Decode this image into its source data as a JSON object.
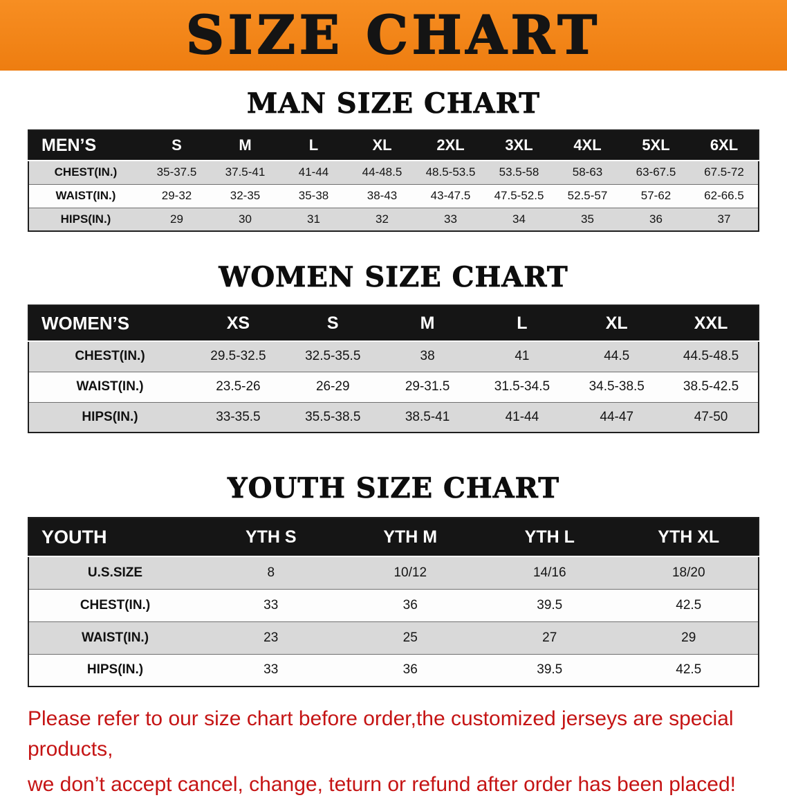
{
  "banner": {
    "title": "SIZE CHART",
    "bg_color": "#f08019"
  },
  "colors": {
    "banner_orange": "#f08019",
    "table_header_black": "#151515",
    "row_stripe_gray": "#d9d9d9",
    "notice_red": "#c51414"
  },
  "sections": [
    {
      "heading": "MAN SIZE CHART",
      "table": {
        "header": [
          "MEN’S",
          "S",
          "M",
          "L",
          "XL",
          "2XL",
          "3XL",
          "4XL",
          "5XL",
          "6XL"
        ],
        "rows": [
          {
            "label": "CHEST(IN.)",
            "values": [
              "35-37.5",
              "37.5-41",
              "41-44",
              "44-48.5",
              "48.5-53.5",
              "53.5-58",
              "58-63",
              "63-67.5",
              "67.5-72"
            ]
          },
          {
            "label": "WAIST(IN.)",
            "values": [
              "29-32",
              "32-35",
              "35-38",
              "38-43",
              "43-47.5",
              "47.5-52.5",
              "52.5-57",
              "57-62",
              "62-66.5"
            ]
          },
          {
            "label": "HIPS(IN.)",
            "values": [
              "29",
              "30",
              "31",
              "32",
              "33",
              "34",
              "35",
              "36",
              "37"
            ]
          }
        ]
      }
    },
    {
      "heading": "WOMEN SIZE CHART",
      "table": {
        "header": [
          "WOMEN’S",
          "XS",
          "S",
          "M",
          "L",
          "XL",
          "XXL"
        ],
        "rows": [
          {
            "label": "CHEST(IN.)",
            "values": [
              "29.5-32.5",
              "32.5-35.5",
              "38",
              "41",
              "44.5",
              "44.5-48.5"
            ]
          },
          {
            "label": "WAIST(IN.)",
            "values": [
              "23.5-26",
              "26-29",
              "29-31.5",
              "31.5-34.5",
              "34.5-38.5",
              "38.5-42.5"
            ]
          },
          {
            "label": "HIPS(IN.)",
            "values": [
              "33-35.5",
              "35.5-38.5",
              "38.5-41",
              "41-44",
              "44-47",
              "47-50"
            ]
          }
        ]
      }
    },
    {
      "heading": "YOUTH SIZE CHART",
      "table": {
        "header": [
          "YOUTH",
          "YTH S",
          "YTH M",
          "YTH L",
          "YTH XL"
        ],
        "rows": [
          {
            "label": "U.S.SIZE",
            "values": [
              "8",
              "10/12",
              "14/16",
              "18/20"
            ]
          },
          {
            "label": "CHEST(IN.)",
            "values": [
              "33",
              "36",
              "39.5",
              "42.5"
            ]
          },
          {
            "label": "WAIST(IN.)",
            "values": [
              "23",
              "25",
              "27",
              "29"
            ]
          },
          {
            "label": "HIPS(IN.)",
            "values": [
              "33",
              "36",
              "39.5",
              "42.5"
            ]
          }
        ]
      }
    }
  ],
  "notice": {
    "line1": "Please refer to our size chart before order,the customized jerseys are special products,",
    "line2": "we don’t accept cancel, change, teturn or refund after order has been placed!"
  }
}
